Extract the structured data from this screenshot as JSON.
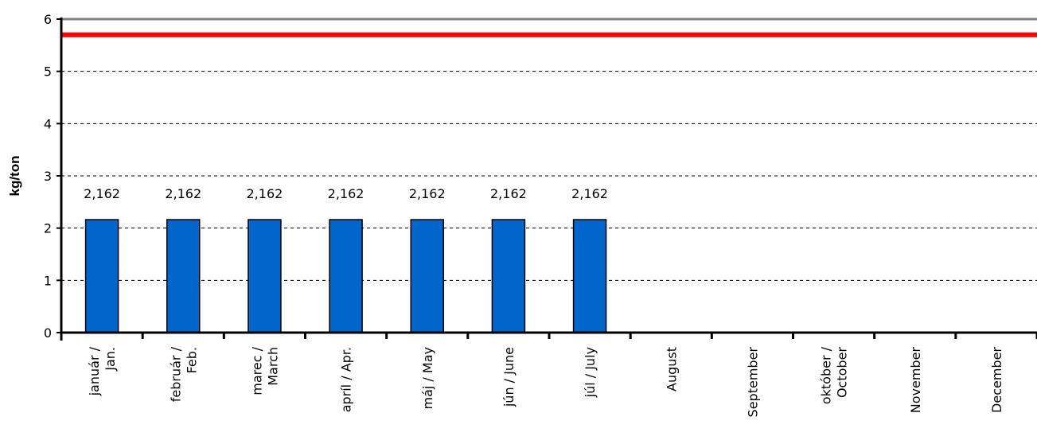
{
  "chart_data": {
    "type": "bar",
    "title": "",
    "xlabel": "",
    "ylabel": "kg/ton",
    "ylim": [
      0,
      6
    ],
    "yticks": [
      "0",
      "1",
      "2",
      "3",
      "4",
      "5",
      "6"
    ],
    "grid": true,
    "categories": [
      [
        "január /",
        "Jan."
      ],
      [
        "február /",
        "Feb."
      ],
      [
        "marec /",
        "March"
      ],
      [
        "apríl / Apr."
      ],
      [
        "máj / May"
      ],
      [
        "jún / June"
      ],
      [
        "júl / July"
      ],
      [
        "August"
      ],
      [
        "September"
      ],
      [
        "október /",
        "October"
      ],
      [
        "November"
      ],
      [
        "December"
      ]
    ],
    "series": [
      {
        "values": [
          2.162,
          2.162,
          2.162,
          2.162,
          2.162,
          2.162,
          2.162,
          null,
          null,
          null,
          null,
          null
        ],
        "data_labels": [
          "2,162",
          "2,162",
          "2,162",
          "2,162",
          "2,162",
          "2,162",
          "2,162",
          "",
          "",
          "",
          "",
          ""
        ],
        "color": "#0066cc"
      }
    ],
    "reference_lines": [
      {
        "value": 5.7,
        "color": "#ff0000"
      }
    ],
    "colors": {
      "bar": "#0066cc",
      "bar_stroke": "#000000",
      "limit": "#ff0000",
      "top_line": "#808080",
      "grid": "#000000"
    }
  }
}
